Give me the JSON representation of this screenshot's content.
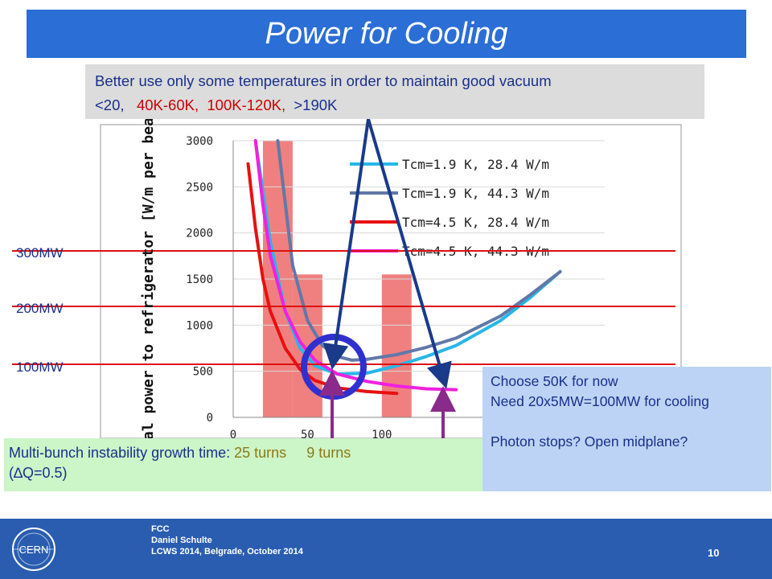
{
  "slide": {
    "title": "Power for Cooling",
    "callout": {
      "prefix": "Better use only some temperatures in order to maintain good vacuum",
      "t1": "<20,",
      "t2": "40K-60K,",
      "t3": "100K-120K,",
      "t4": ">190K"
    },
    "mw_labels": [
      "300MW",
      "200MW",
      "100MW"
    ],
    "note_right": {
      "line1": "Choose 50K for now",
      "line2": "Need 20x5MW=100MW for cooling",
      "line3": "Photon stops? Open midplane?"
    },
    "note_bottom": {
      "prefix": "Multi-bunch instability growth time:",
      "turns1": "25 turns",
      "turns2": "9 turns",
      "suffix": "(∆Q=0.5)"
    },
    "footer": {
      "line1": "FCC",
      "line2": "Daniel Schulte",
      "line3": "LCWS 2014, Belgrade, October 2014",
      "page": "10",
      "logo_text": "CERN"
    }
  },
  "colors": {
    "title_bg": "#2b6ed6",
    "footer_bg": "#2a5db0",
    "band": "#f08080",
    "mw_line": "#e01010",
    "circle": "#3030d0",
    "arrow": "#1a3a8a",
    "purple_arrow": "#8a2a8a"
  },
  "chart_data": {
    "type": "line",
    "title": "",
    "xlabel": "",
    "ylabel": "Total power to refrigerator [W/m per beam]",
    "xlim": [
      0,
      250
    ],
    "ylim": [
      0,
      3000
    ],
    "x_ticks": [
      "0",
      "50",
      "100"
    ],
    "y_ticks": [
      "0",
      "500",
      "1000",
      "1500",
      "2000",
      "2500",
      "3000"
    ],
    "legend_position": "top-right",
    "bands": [
      {
        "from": 20,
        "to": 40,
        "height": 3000
      },
      {
        "from": 40,
        "to": 60,
        "height": 1550
      },
      {
        "from": 100,
        "to": 120,
        "height": 1550
      }
    ],
    "series": [
      {
        "name": "Tcm=1.9 K, 28.4 W/m",
        "color": "#29b6e8",
        "x": [
          15,
          25,
          35,
          45,
          55,
          70,
          90,
          110,
          130,
          150,
          180,
          200,
          220
        ],
        "y": [
          3000,
          1900,
          1150,
          750,
          560,
          470,
          480,
          560,
          660,
          780,
          1050,
          1300,
          1580
        ]
      },
      {
        "name": "Tcm=1.9 K, 44.3 W/m",
        "color": "#6178a8",
        "x": [
          30,
          40,
          50,
          60,
          70,
          80,
          90,
          110,
          130,
          150,
          180,
          200,
          220
        ],
        "y": [
          3000,
          1650,
          1050,
          780,
          660,
          620,
          630,
          680,
          760,
          860,
          1100,
          1330,
          1580
        ]
      },
      {
        "name": "Tcm=4.5 K, 28.4 W/m",
        "color": "#e81010",
        "x": [
          10,
          15,
          20,
          25,
          35,
          45,
          55,
          70,
          90,
          110
        ],
        "y": [
          2750,
          2050,
          1500,
          1150,
          750,
          520,
          400,
          320,
          280,
          260
        ]
      },
      {
        "name": "Tcm=4.5 K, 44.3 W/m",
        "color": "#f020e0",
        "x": [
          15,
          20,
          25,
          35,
          45,
          55,
          70,
          90,
          110,
          130,
          150
        ],
        "y": [
          3000,
          2300,
          1750,
          1150,
          820,
          620,
          470,
          390,
          340,
          310,
          300
        ]
      }
    ]
  }
}
